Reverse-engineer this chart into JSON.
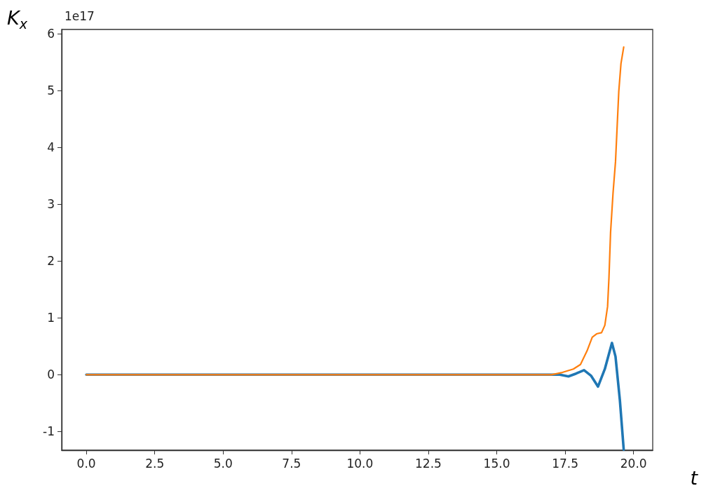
{
  "chart_data": {
    "type": "line",
    "ylabel": "K$_{x}$",
    "xlabel": "t",
    "annotations": [
      "1e17"
    ],
    "xlim": [
      -0.9,
      20.7
    ],
    "ylim": [
      -1.33,
      6.08
    ],
    "xticks": [
      {
        "value": 0,
        "label": "0.0"
      },
      {
        "value": 2.5,
        "label": "2.5"
      },
      {
        "value": 5,
        "label": "5.0"
      },
      {
        "value": 7.5,
        "label": "7.5"
      },
      {
        "value": 10,
        "label": "10.0"
      },
      {
        "value": 12.5,
        "label": "12.5"
      },
      {
        "value": 15,
        "label": "15.0"
      },
      {
        "value": 17.5,
        "label": "17.5"
      },
      {
        "value": 20,
        "label": "20.0"
      }
    ],
    "yticks": [
      -1,
      0,
      1,
      2,
      3,
      4,
      5,
      6
    ],
    "grid": false,
    "marker": "none",
    "line_style": "solid",
    "series": [
      {
        "color": "#1f77b4",
        "x": [
          0,
          17.0,
          17.3,
          17.62,
          17.9,
          18.19,
          18.45,
          18.7,
          18.95,
          19.21,
          19.34,
          19.5,
          19.64
        ],
        "values": [
          0,
          0,
          0,
          -0.03,
          0.02,
          0.08,
          -0.02,
          -0.21,
          0.1,
          0.56,
          0.32,
          -0.45,
          -1.32
        ]
      },
      {
        "color": "#ff7f0e",
        "x": [
          0,
          17.0,
          17.4,
          17.8,
          18.06,
          18.3,
          18.49,
          18.65,
          18.83,
          18.95,
          19.05,
          19.1,
          19.16,
          19.25,
          19.34,
          19.46,
          19.54,
          19.64
        ],
        "values": [
          0,
          0,
          0.04,
          0.1,
          0.18,
          0.42,
          0.66,
          0.72,
          0.74,
          0.87,
          1.2,
          1.7,
          2.51,
          3.2,
          3.75,
          4.99,
          5.48,
          5.77
        ]
      }
    ]
  }
}
